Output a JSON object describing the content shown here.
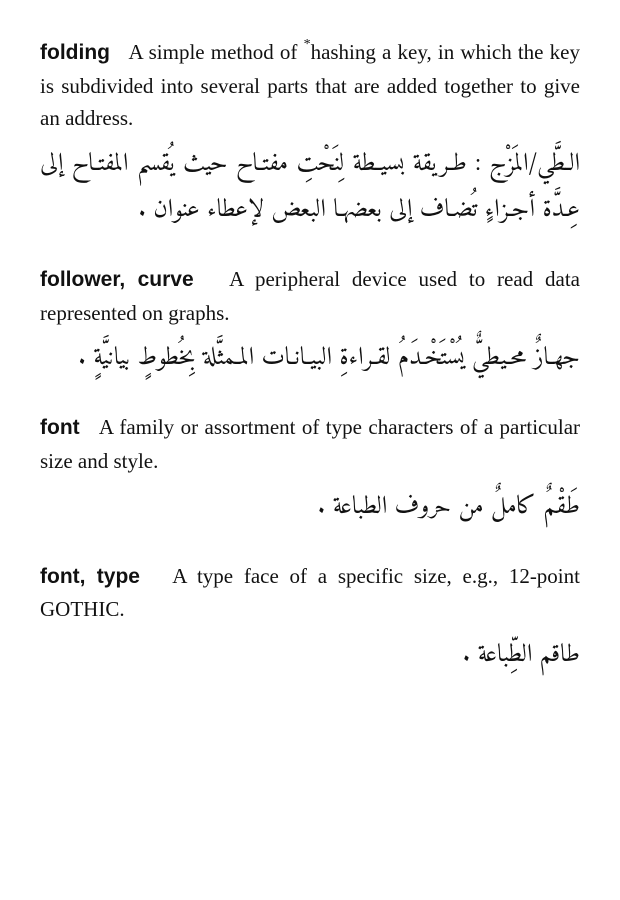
{
  "entries": [
    {
      "term": "folding",
      "en_def": "A simple method of <sup class=\"ast\">*</sup>hashing a key, in which the key is subdivided into several parts that are added together to give an address.",
      "ar_def": "الـطَّي/المَزْج : طـريقة بسيـطة لِنَحْتِ مفتـاح حيث يُقسم المفتـاح إلى عِـدَّة أجـزاءٍ تُضـاف إلى بعضهـا البعض لإعطاء عنوان ."
    },
    {
      "term": "follower, curve",
      "en_def": "A peripheral device used to read data represented on graphs.",
      "ar_def": "جهـازٌ محـيطيٌّ يُسْتَخْـدَمُ لقـراءةِ البيـانـات المـمثَّلة بِخُطوطٍ بيانيَّةٍ ."
    },
    {
      "term": "font",
      "en_def": "A family or assortment of type characters of a particular size and style.",
      "ar_def": "طَقْمٌ كاملٌ من حروف الطباعة ."
    },
    {
      "term": "font, type",
      "en_def": "A type face of a specific size, e.g., 12-point GOTHIC.",
      "ar_def": "طاقم الطِّباعة ."
    }
  ]
}
